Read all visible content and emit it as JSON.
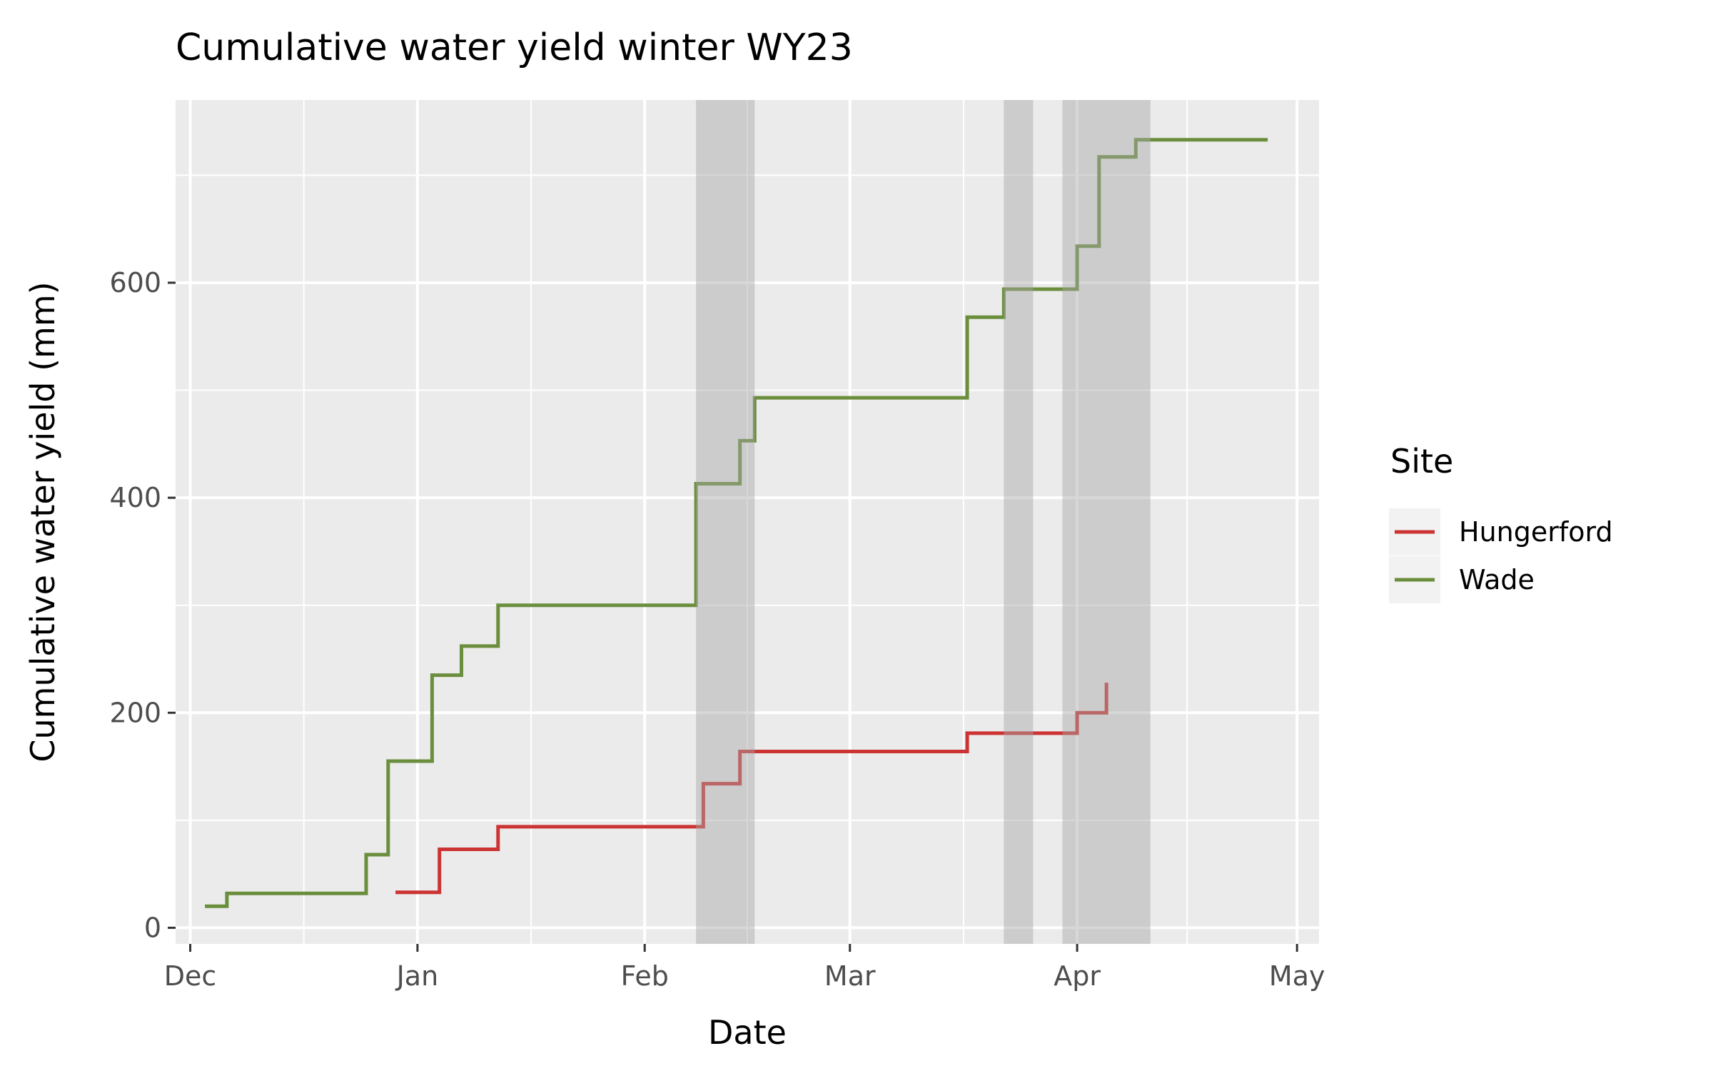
{
  "chart_data": {
    "type": "line",
    "step": true,
    "title": "Cumulative water yield winter WY23",
    "xlabel": "Date",
    "ylabel": "Cumulative water yield (mm)",
    "xlim": [
      "2022-11-29",
      "2023-05-04"
    ],
    "ylim": [
      -15,
      770
    ],
    "x_ticks": [
      {
        "date": "2022-12-01",
        "label": "Dec"
      },
      {
        "date": "2023-01-01",
        "label": "Jan"
      },
      {
        "date": "2023-02-01",
        "label": "Feb"
      },
      {
        "date": "2023-03-01",
        "label": "Mar"
      },
      {
        "date": "2023-04-01",
        "label": "Apr"
      },
      {
        "date": "2023-05-01",
        "label": "May"
      }
    ],
    "y_ticks": [
      0,
      200,
      400,
      600
    ],
    "grid": true,
    "legend": {
      "title": "Site",
      "position": "right"
    },
    "shaded_periods": [
      {
        "start": "2023-02-08",
        "end": "2023-02-16"
      },
      {
        "start": "2023-03-22",
        "end": "2023-03-26"
      },
      {
        "start": "2023-03-30",
        "end": "2023-04-11"
      }
    ],
    "series": [
      {
        "name": "Hungerford",
        "color": "#cc3333",
        "points": [
          {
            "x": "2022-12-29",
            "y": 33
          },
          {
            "x": "2023-01-04",
            "y": 73
          },
          {
            "x": "2023-01-12",
            "y": 94
          },
          {
            "x": "2023-02-09",
            "y": 134
          },
          {
            "x": "2023-02-14",
            "y": 164
          },
          {
            "x": "2023-03-17",
            "y": 181
          },
          {
            "x": "2023-04-01",
            "y": 200
          },
          {
            "x": "2023-04-05",
            "y": 228
          }
        ],
        "end": "2023-04-05"
      },
      {
        "name": "Wade",
        "color": "#6b8e3d",
        "points": [
          {
            "x": "2022-12-03",
            "y": 20
          },
          {
            "x": "2022-12-06",
            "y": 32
          },
          {
            "x": "2022-12-25",
            "y": 68
          },
          {
            "x": "2022-12-28",
            "y": 155
          },
          {
            "x": "2023-01-03",
            "y": 235
          },
          {
            "x": "2023-01-07",
            "y": 262
          },
          {
            "x": "2023-01-12",
            "y": 300
          },
          {
            "x": "2023-02-08",
            "y": 413
          },
          {
            "x": "2023-02-14",
            "y": 453
          },
          {
            "x": "2023-02-16",
            "y": 493
          },
          {
            "x": "2023-03-17",
            "y": 568
          },
          {
            "x": "2023-03-22",
            "y": 594
          },
          {
            "x": "2023-04-01",
            "y": 634
          },
          {
            "x": "2023-04-04",
            "y": 717
          },
          {
            "x": "2023-04-09",
            "y": 733
          }
        ],
        "end": "2023-04-27"
      }
    ]
  }
}
